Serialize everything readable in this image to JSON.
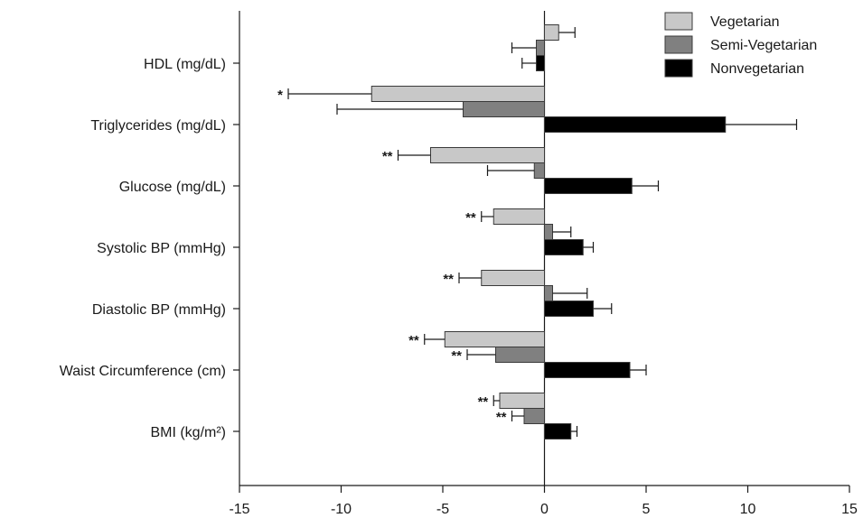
{
  "chart_data": {
    "type": "bar",
    "orientation": "horizontal",
    "categories": [
      "HDL (mg/dL)",
      "Triglycerides (mg/dL)",
      "Glucose (mg/dL)",
      "Systolic BP (mmHg)",
      "Diastolic BP (mmHg)",
      "Waist Circumference (cm)",
      "BMI (kg/m²)"
    ],
    "series": [
      {
        "name": "Vegetarian",
        "color": "#c8c8c8",
        "values": [
          0.7,
          -8.5,
          -5.6,
          -2.5,
          -3.1,
          -4.9,
          -2.2
        ],
        "errors": [
          0.8,
          4.1,
          1.6,
          0.6,
          1.1,
          1.0,
          0.3
        ],
        "significance": [
          "",
          "*",
          "**",
          "**",
          "**",
          "**",
          "**"
        ]
      },
      {
        "name": "Semi-Vegetarian",
        "color": "#808080",
        "values": [
          -0.4,
          -4.0,
          -0.5,
          0.4,
          0.4,
          -2.4,
          -1.0
        ],
        "errors": [
          1.2,
          6.2,
          2.3,
          0.9,
          1.7,
          1.4,
          0.6
        ],
        "significance": [
          "",
          "",
          "",
          "",
          "",
          "**",
          "**"
        ]
      },
      {
        "name": "Nonvegetarian",
        "color": "#000000",
        "values": [
          -0.4,
          8.9,
          4.3,
          1.9,
          2.4,
          4.2,
          1.3
        ],
        "errors": [
          0.7,
          3.5,
          1.3,
          0.5,
          0.9,
          0.8,
          0.3
        ],
        "significance": [
          "",
          "",
          "",
          "",
          "",
          "",
          ""
        ]
      }
    ],
    "xlim": [
      -15,
      15
    ],
    "xticks": [
      "-15",
      "-10",
      "-5",
      "0",
      "5",
      "10",
      "15"
    ],
    "xlabel": "",
    "ylabel": "",
    "title": "",
    "grid": false,
    "legend_position": "top-right"
  }
}
